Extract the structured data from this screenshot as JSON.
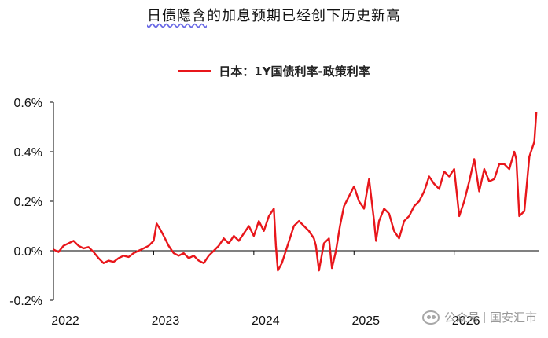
{
  "chart_data": {
    "type": "line",
    "title_prefix": "日债隐含",
    "title_rest": "的加息预期已经创下历史新高",
    "series": [
      {
        "name": "日本：1Y国债利率-政策利率",
        "color": "#e8161b",
        "x": [
          2022.0,
          2022.05,
          2022.1,
          2022.15,
          2022.2,
          2022.25,
          2022.3,
          2022.35,
          2022.4,
          2022.45,
          2022.5,
          2022.55,
          2022.6,
          2022.65,
          2022.7,
          2022.75,
          2022.8,
          2022.85,
          2022.9,
          2022.95,
          2023.0,
          2023.03,
          2023.06,
          2023.1,
          2023.15,
          2023.2,
          2023.25,
          2023.3,
          2023.35,
          2023.4,
          2023.45,
          2023.5,
          2023.55,
          2023.6,
          2023.65,
          2023.7,
          2023.75,
          2023.8,
          2023.85,
          2023.9,
          2023.95,
          2024.0,
          2024.05,
          2024.1,
          2024.15,
          2024.2,
          2024.22,
          2024.24,
          2024.28,
          2024.32,
          2024.36,
          2024.4,
          2024.45,
          2024.5,
          2024.55,
          2024.6,
          2024.62,
          2024.65,
          2024.7,
          2024.75,
          2024.78,
          2024.82,
          2024.86,
          2024.9,
          2024.95,
          2025.0,
          2025.05,
          2025.1,
          2025.15,
          2025.2,
          2025.22,
          2025.25,
          2025.3,
          2025.35,
          2025.4,
          2025.45,
          2025.5,
          2025.55,
          2025.6,
          2025.65,
          2025.7,
          2025.75,
          2025.8,
          2025.85,
          2025.9,
          2025.95,
          2026.0,
          2026.05,
          2026.1,
          2026.15,
          2026.2,
          2026.25,
          2026.3,
          2026.35,
          2026.4,
          2026.45,
          2026.5,
          2026.55,
          2026.6,
          2026.62,
          2026.65,
          2026.7,
          2026.75,
          2026.8,
          2026.82
        ],
        "values": [
          0.005,
          -0.005,
          0.02,
          0.03,
          0.04,
          0.02,
          0.01,
          0.015,
          -0.005,
          -0.03,
          -0.05,
          -0.04,
          -0.045,
          -0.03,
          -0.02,
          -0.025,
          -0.01,
          0.0,
          0.01,
          0.02,
          0.04,
          0.11,
          0.09,
          0.06,
          0.02,
          -0.01,
          -0.02,
          -0.01,
          -0.03,
          -0.02,
          -0.04,
          -0.05,
          -0.02,
          0.0,
          0.02,
          0.05,
          0.03,
          0.06,
          0.04,
          0.07,
          0.1,
          0.06,
          0.12,
          0.08,
          0.14,
          0.17,
          0.02,
          -0.08,
          -0.05,
          0.0,
          0.05,
          0.1,
          0.12,
          0.1,
          0.08,
          0.05,
          0.02,
          -0.08,
          0.03,
          0.05,
          -0.07,
          0.0,
          0.1,
          0.18,
          0.22,
          0.26,
          0.2,
          0.17,
          0.29,
          0.12,
          0.04,
          0.12,
          0.17,
          0.15,
          0.08,
          0.05,
          0.12,
          0.14,
          0.18,
          0.2,
          0.24,
          0.3,
          0.27,
          0.25,
          0.32,
          0.3,
          0.33,
          0.14,
          0.2,
          0.28,
          0.37,
          0.24,
          0.33,
          0.28,
          0.29,
          0.35,
          0.35,
          0.33,
          0.4,
          0.37,
          0.14,
          0.16,
          0.38,
          0.44,
          0.56
        ]
      }
    ],
    "xticks": [
      2022,
      2023,
      2024,
      2025,
      2026
    ],
    "xtick_labels": [
      "2022",
      "2023",
      "2024",
      "2025",
      "2026"
    ],
    "yticks": [
      -0.2,
      0.0,
      0.2,
      0.4,
      0.6
    ],
    "ytick_labels": [
      "-0.2%",
      "0.0%",
      "0.2%",
      "0.4%",
      "0.6%"
    ],
    "xlim": [
      2022.0,
      2026.85
    ],
    "ylim": [
      -0.2,
      0.6
    ],
    "grid": false,
    "legend_position": "top-center"
  },
  "watermark": {
    "platform": "公众号",
    "account": "国安汇市"
  }
}
